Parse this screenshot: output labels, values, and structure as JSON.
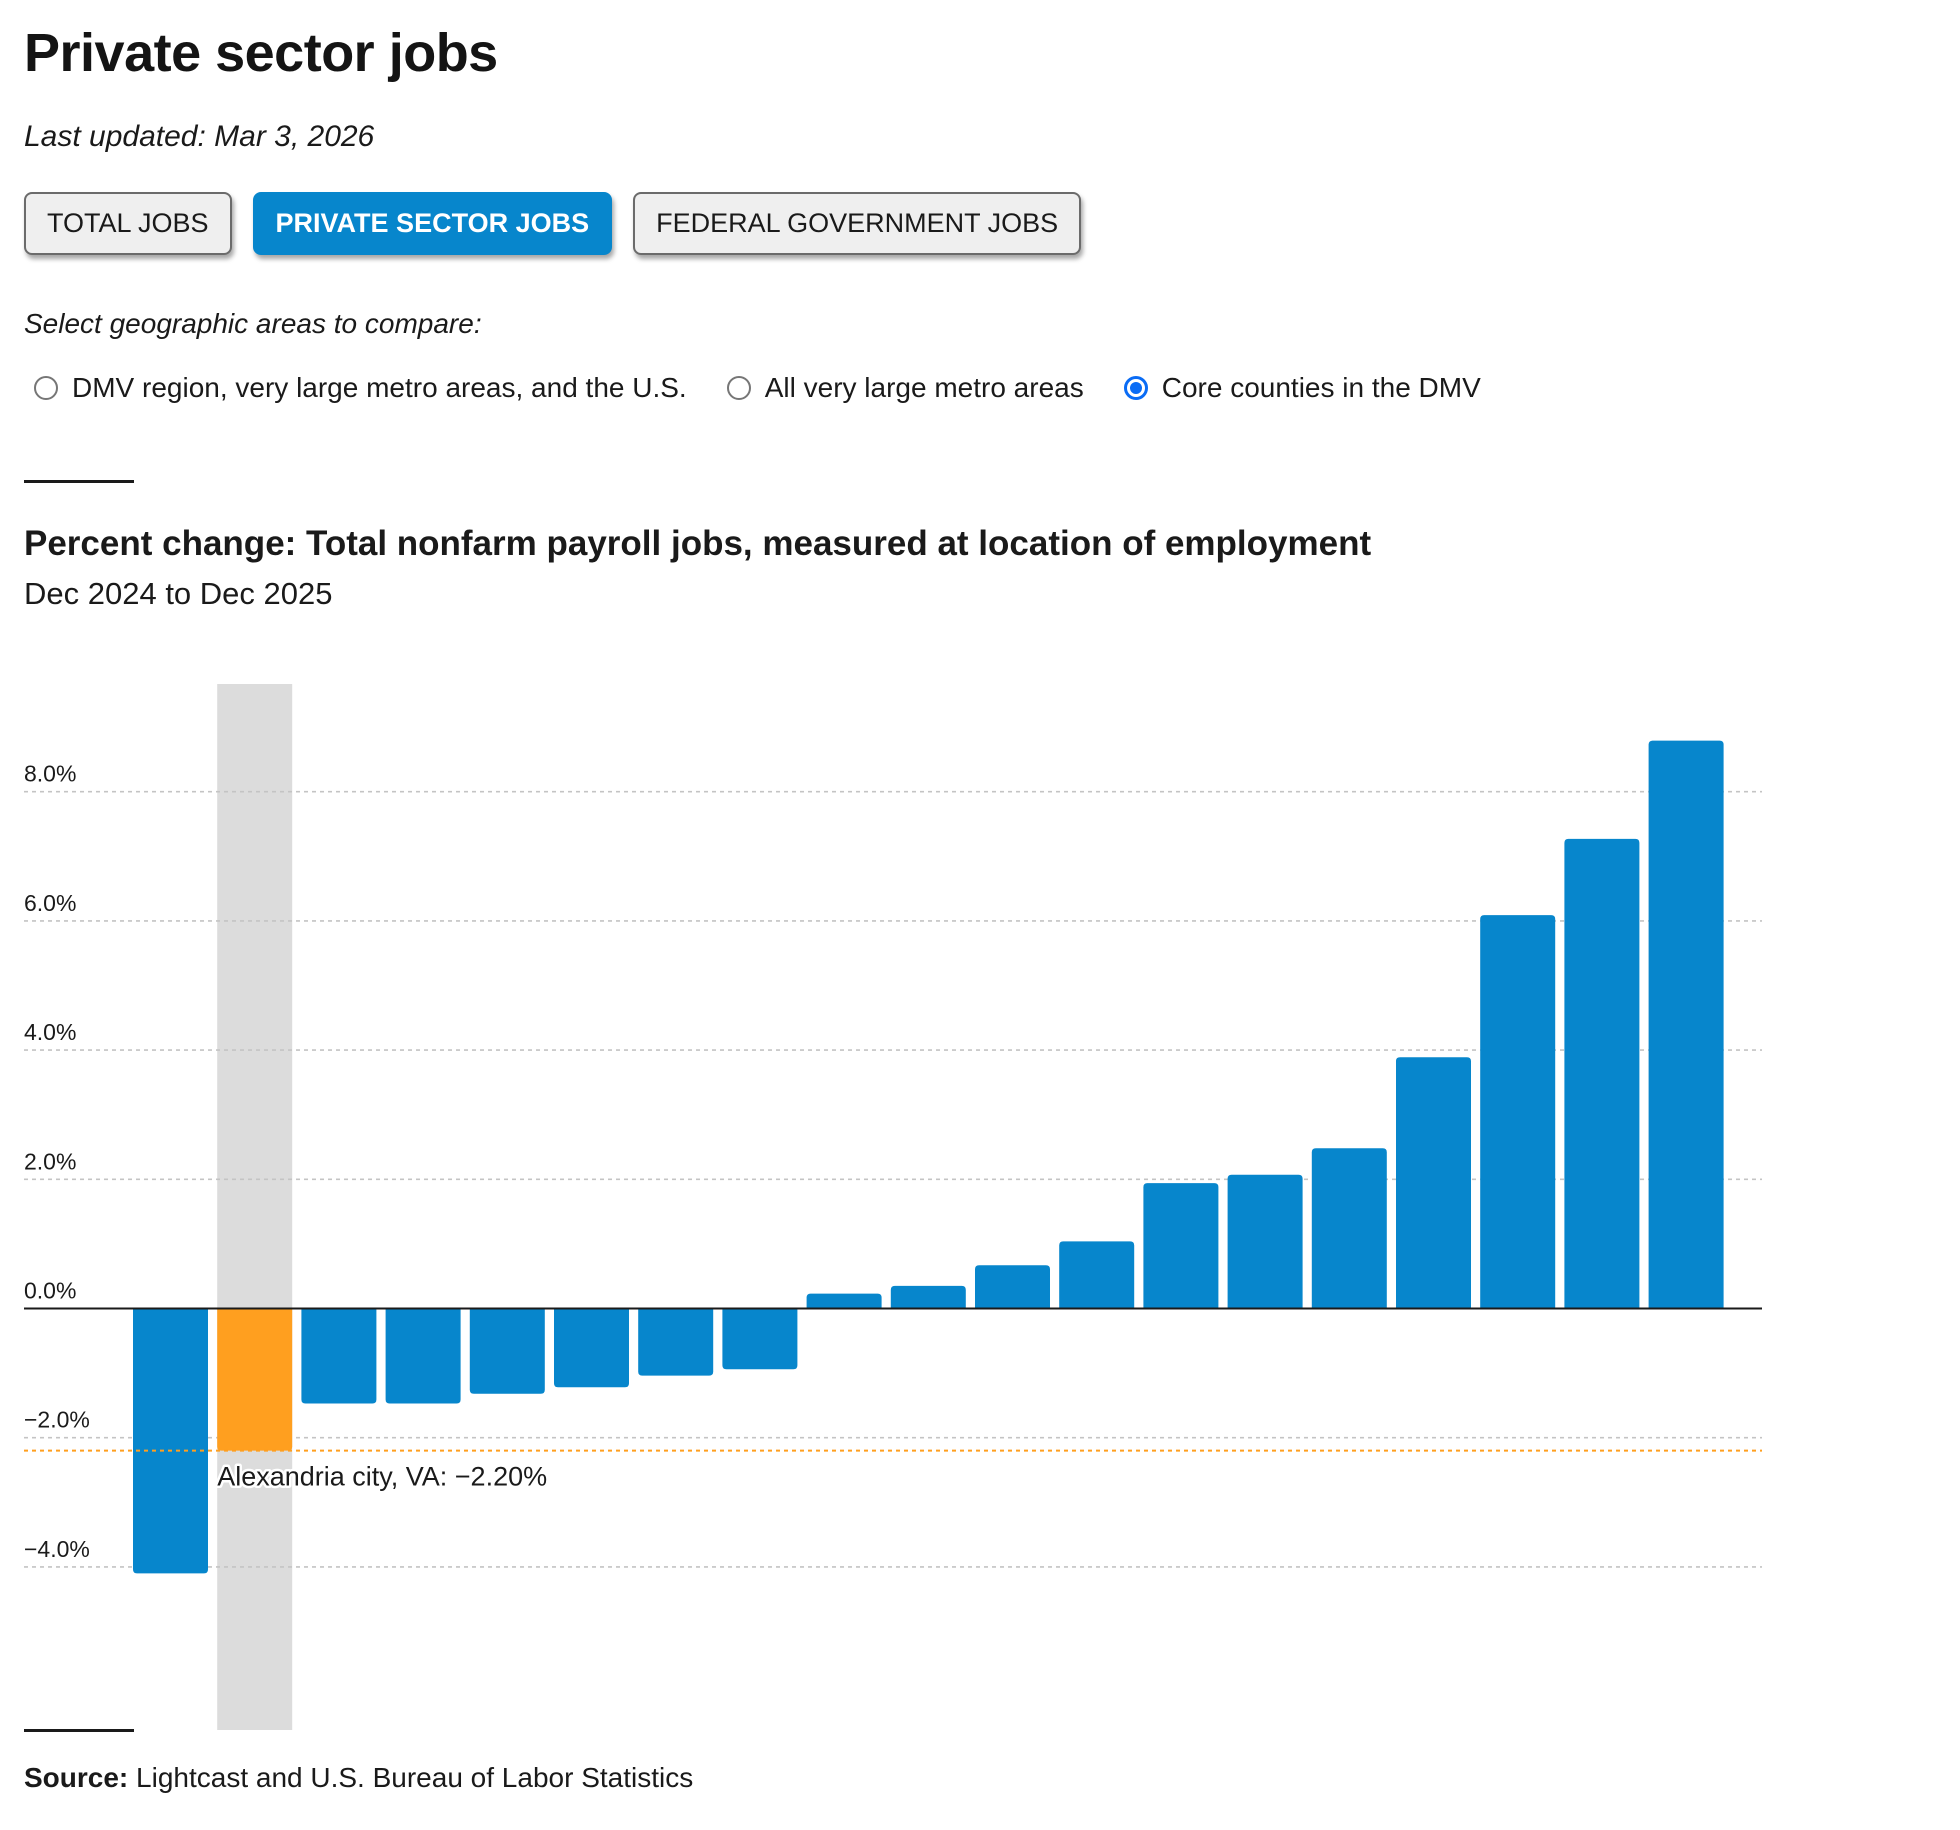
{
  "page": {
    "title": "Private sector jobs",
    "last_updated": "Last updated: Mar 3, 2026"
  },
  "tabs": [
    {
      "label": "TOTAL JOBS",
      "active": false
    },
    {
      "label": "PRIVATE SECTOR JOBS",
      "active": true
    },
    {
      "label": "FEDERAL GOVERNMENT JOBS",
      "active": false
    }
  ],
  "geo_select": {
    "prompt": "Select geographic areas to compare:",
    "options": [
      {
        "label": "DMV region, very large metro areas, and the U.S.",
        "checked": false
      },
      {
        "label": "All very large metro areas",
        "checked": false
      },
      {
        "label": "Core counties in the DMV",
        "checked": true
      }
    ]
  },
  "colors": {
    "bar": "#0786cc",
    "highlight_bar": "#ff9f1f",
    "highlight_band": "#dcdcdc",
    "gridline": "#c4c4c4",
    "radio_accent": "#0a6cf5"
  },
  "source": {
    "label": "Source:",
    "text": " Lightcast and U.S. Bureau of Labor Statistics"
  },
  "chart_data": {
    "type": "bar",
    "title": "Percent change: Total nonfarm payroll jobs, measured at location of employment",
    "subtitle": "Dec 2024 to Dec 2025",
    "xlabel": "",
    "ylabel": "",
    "ylim": [
      -5.5,
      9.7
    ],
    "yticks": [
      8,
      6,
      4,
      2,
      0,
      -2,
      -4
    ],
    "ytick_labels": [
      "8.0%",
      "6.0%",
      "4.0%",
      "2.0%",
      "0.0%",
      "−2.0%",
      "−4.0%"
    ],
    "grid": true,
    "values": [
      -4.1,
      -2.2,
      -1.47,
      -1.47,
      -1.32,
      -1.22,
      -1.04,
      -0.94,
      0.23,
      0.35,
      0.67,
      1.04,
      1.94,
      2.07,
      2.48,
      3.89,
      6.09,
      7.27,
      8.79
    ],
    "highlight_index": 1,
    "highlight_label": "Alexandria city, VA: −2.20%",
    "highlight_value": -2.2,
    "legend": "none"
  }
}
